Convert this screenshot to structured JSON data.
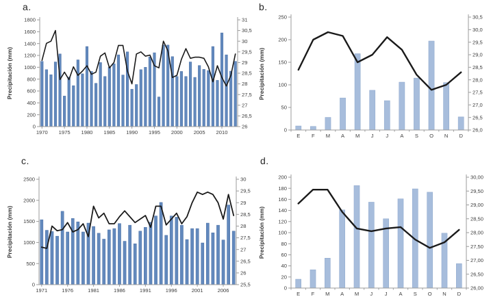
{
  "colors": {
    "background": "#ffffff",
    "bar_fill_dark": "#6289bd",
    "bar_edge_dark": "#4a6fa5",
    "bar_fill_light": "#a7bddc",
    "bar_edge_light": "#8ea8cd",
    "line": "#1a1a1a",
    "axis": "#9b9b9b",
    "text": "#3d3d3d"
  },
  "chart_data": [
    {
      "id": "a",
      "panel_label": "a.",
      "type": "bar+line",
      "ylabel": "Precipitación (mm)",
      "bar_style": "dark",
      "categories": [
        1970,
        1971,
        1972,
        1973,
        1974,
        1975,
        1976,
        1977,
        1978,
        1979,
        1980,
        1981,
        1982,
        1983,
        1984,
        1985,
        1986,
        1987,
        1988,
        1989,
        1990,
        1991,
        1992,
        1993,
        1994,
        1995,
        1996,
        1997,
        1998,
        1999,
        2000,
        2001,
        2002,
        2003,
        2004,
        2005,
        2006,
        2007,
        2008,
        2009,
        2010,
        2011,
        2012,
        2013
      ],
      "series": [
        {
          "name": "precipitation_bars",
          "type": "bar",
          "axis": "left",
          "values": [
            1100,
            960,
            875,
            1090,
            1225,
            515,
            835,
            690,
            1125,
            890,
            1350,
            930,
            730,
            1080,
            845,
            1000,
            1060,
            1210,
            870,
            1260,
            630,
            710,
            960,
            1000,
            1175,
            1245,
            500,
            1375,
            1375,
            1180,
            845,
            930,
            845,
            1090,
            830,
            1030,
            965,
            945,
            1350,
            780,
            1580,
            1210,
            935,
            1100
          ]
        },
        {
          "name": "line_series",
          "type": "line",
          "axis": "right",
          "values": [
            29.1,
            29.9,
            30.0,
            30.5,
            28.2,
            28.55,
            28.2,
            28.8,
            28.4,
            28.6,
            28.85,
            28.45,
            28.55,
            29.3,
            29.45,
            28.75,
            29.0,
            29.8,
            29.8,
            28.6,
            28.0,
            29.4,
            29.5,
            29.3,
            29.35,
            28.85,
            28.75,
            30.0,
            29.55,
            28.3,
            28.4,
            29.15,
            29.65,
            29.2,
            29.25,
            29.25,
            29.2,
            28.8,
            28.1,
            28.85,
            28.3,
            27.9,
            28.4,
            29.4
          ]
        }
      ],
      "left_axis": {
        "min": 0,
        "max": 1800,
        "tick_labels": [
          "1800",
          "1600",
          "1400",
          "1200",
          "1000",
          "800",
          "600",
          "400",
          "200",
          "0"
        ]
      },
      "right_axis": {
        "min": 26,
        "max": 31,
        "tick_labels": [
          "31",
          "30,5",
          "30",
          "29,5",
          "29",
          "28,5",
          "28",
          "27,5",
          "27",
          "26,5",
          "26"
        ]
      },
      "x_axis": {
        "tick_labels": [
          "1970",
          "1975",
          "1980",
          "1985",
          "1990",
          "1995",
          "2000",
          "2005",
          "2010"
        ],
        "tick_positions": [
          0,
          5,
          10,
          15,
          20,
          25,
          30,
          35,
          40
        ]
      }
    },
    {
      "id": "b",
      "panel_label": "b.",
      "type": "bar+line",
      "ylabel": "Precipitación (mm)",
      "bar_style": "light",
      "categories": [
        "E",
        "F",
        "M",
        "A",
        "M",
        "J",
        "J",
        "A",
        "S",
        "O",
        "N",
        "D"
      ],
      "series": [
        {
          "name": "precipitation_bars",
          "type": "bar",
          "axis": "left",
          "values": [
            9,
            8,
            28,
            71,
            169,
            88,
            65,
            106,
            115,
            197,
            105,
            29
          ]
        },
        {
          "name": "line_series",
          "type": "line",
          "axis": "right",
          "values": [
            28.4,
            29.6,
            29.9,
            29.75,
            28.7,
            29.0,
            29.7,
            29.2,
            28.2,
            27.6,
            27.8,
            28.3
          ]
        }
      ],
      "left_axis": {
        "min": 0,
        "max": 250,
        "tick_labels": [
          "250",
          "200",
          "150",
          "100",
          "50",
          "0"
        ]
      },
      "right_axis": {
        "min": 26.0,
        "max": 30.5,
        "tick_labels": [
          "30,5",
          "30,0",
          "29,5",
          "29,0",
          "28,5",
          "28,0",
          "27,5",
          "27,0",
          "26,5",
          "26,0"
        ]
      },
      "x_axis": {
        "tick_labels": [
          "E",
          "F",
          "M",
          "A",
          "M",
          "J",
          "J",
          "A",
          "S",
          "O",
          "N",
          "D"
        ],
        "tick_positions": [
          0,
          1,
          2,
          3,
          4,
          5,
          6,
          7,
          8,
          9,
          10,
          11
        ]
      }
    },
    {
      "id": "c",
      "panel_label": "c.",
      "type": "bar+line",
      "ylabel": "Precipitación (mm)",
      "bar_style": "dark",
      "categories": [
        1971,
        1972,
        1973,
        1974,
        1975,
        1976,
        1977,
        1978,
        1979,
        1980,
        1981,
        1982,
        1983,
        1984,
        1985,
        1986,
        1987,
        1988,
        1989,
        1990,
        1991,
        1992,
        1993,
        1994,
        1995,
        1996,
        1997,
        1998,
        1999,
        2000,
        2001,
        2002,
        2003,
        2004,
        2005,
        2006,
        2007,
        2008
      ],
      "series": [
        {
          "name": "precipitation_bars",
          "type": "bar",
          "axis": "left",
          "values": [
            1540,
            1290,
            1260,
            1150,
            1740,
            1250,
            1570,
            1490,
            1250,
            1460,
            1380,
            1220,
            1080,
            1300,
            1330,
            1450,
            1030,
            1410,
            970,
            1270,
            1360,
            1480,
            1630,
            1950,
            1170,
            1630,
            1600,
            1410,
            1070,
            1330,
            1330,
            990,
            1460,
            1230,
            1410,
            1060,
            1890,
            1270
          ]
        },
        {
          "name": "line_series",
          "type": "line",
          "axis": "right",
          "values": [
            27.1,
            27.05,
            28.0,
            27.8,
            27.85,
            28.15,
            27.75,
            27.85,
            28.1,
            27.55,
            28.85,
            28.35,
            28.55,
            28.1,
            28.1,
            28.4,
            28.65,
            28.4,
            28.15,
            28.3,
            28.45,
            27.95,
            28.85,
            28.85,
            28.05,
            28.3,
            28.55,
            28.1,
            28.4,
            29.0,
            29.45,
            29.35,
            29.45,
            29.35,
            29.0,
            28.3,
            29.35,
            28.45
          ]
        }
      ],
      "left_axis": {
        "min": 0,
        "max": 2500,
        "tick_labels": [
          "2500",
          "2000",
          "1500",
          "1000",
          "500",
          "0"
        ]
      },
      "right_axis": {
        "min": 25.5,
        "max": 30,
        "tick_labels": [
          "30",
          "29,5",
          "29",
          "28,5",
          "28",
          "27,5",
          "27",
          "26,5",
          "26",
          "25,5"
        ]
      },
      "x_axis": {
        "tick_labels": [
          "1971",
          "1976",
          "1981",
          "1986",
          "1991",
          "1996",
          "2001",
          "2006"
        ],
        "tick_positions": [
          0,
          5,
          10,
          15,
          20,
          25,
          30,
          35
        ]
      }
    },
    {
      "id": "d",
      "panel_label": "d.",
      "type": "bar+line",
      "ylabel": "Precipitación (mm)",
      "bar_style": "light",
      "categories": [
        "E",
        "F",
        "M",
        "A",
        "M",
        "J",
        "J",
        "A",
        "S",
        "O",
        "N",
        "D"
      ],
      "series": [
        {
          "name": "precipitation_bars",
          "type": "bar",
          "axis": "left",
          "values": [
            16,
            33,
            54,
            141,
            185,
            155,
            125,
            161,
            179,
            173,
            99,
            44
          ]
        },
        {
          "name": "line_series",
          "type": "line",
          "axis": "right",
          "values": [
            29.05,
            29.55,
            29.55,
            28.75,
            28.15,
            28.05,
            28.15,
            28.2,
            27.75,
            27.45,
            27.65,
            28.1
          ]
        }
      ],
      "left_axis": {
        "min": 0,
        "max": 200,
        "tick_labels": [
          "200",
          "180",
          "160",
          "140",
          "120",
          "100",
          "80",
          "60",
          "40",
          "20",
          "0"
        ]
      },
      "right_axis": {
        "min": 26.0,
        "max": 30.0,
        "tick_labels": [
          "30,00",
          "29,50",
          "29,00",
          "28,50",
          "28,00",
          "27,50",
          "27,00",
          "26,50",
          "26,00"
        ]
      },
      "x_axis": {
        "tick_labels": [
          "E",
          "F",
          "M",
          "A",
          "M",
          "J",
          "J",
          "A",
          "S",
          "O",
          "N",
          "D"
        ],
        "tick_positions": [
          0,
          1,
          2,
          3,
          4,
          5,
          6,
          7,
          8,
          9,
          10,
          11
        ]
      }
    }
  ]
}
